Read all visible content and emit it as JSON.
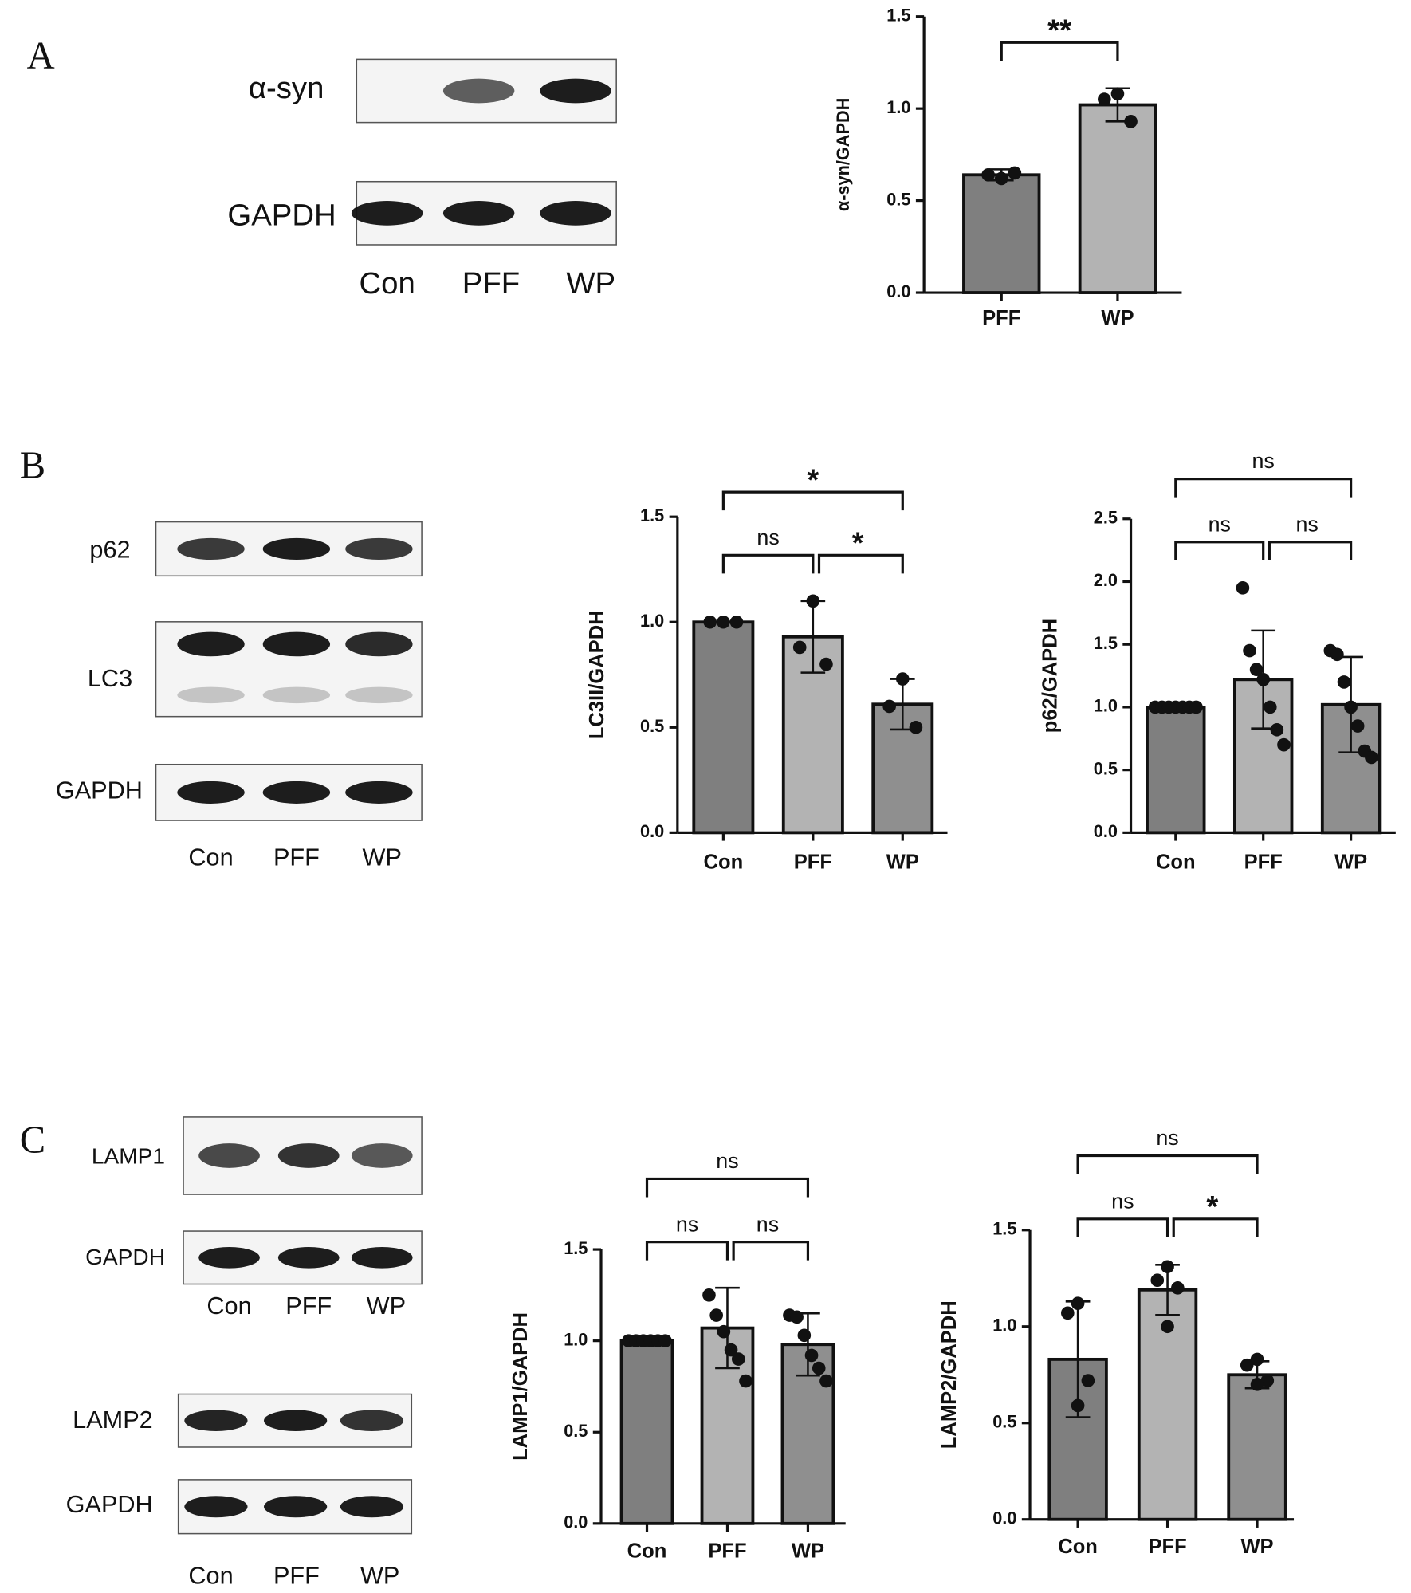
{
  "panels": [
    {
      "label": "A",
      "groups": [
        {
          "rows": [
            "α-syn",
            "GAPDH"
          ],
          "lanes": [
            "Con",
            "PFF",
            "WP"
          ]
        }
      ]
    },
    {
      "label": "B",
      "groups": [
        {
          "rows": [
            "p62",
            "LC3",
            "GAPDH"
          ],
          "lanes": [
            "Con",
            "PFF",
            "WP"
          ]
        }
      ]
    },
    {
      "label": "C",
      "groups": [
        {
          "rows": [
            "LAMP1",
            "GAPDH"
          ],
          "lanes": [
            "Con",
            "PFF",
            "WP"
          ]
        },
        {
          "rows": [
            "LAMP2",
            "GAPDH"
          ],
          "lanes": [
            "Con",
            "PFF",
            "WP"
          ]
        }
      ]
    }
  ],
  "chart_data": [
    {
      "type": "bar",
      "ylabel": "α-syn/GAPDH",
      "categories": [
        "PFF",
        "WP"
      ],
      "colors": [
        "#7f7f7f",
        "#b3b3b3"
      ],
      "values": [
        0.64,
        1.02
      ],
      "errors": [
        0.03,
        0.09
      ],
      "points": [
        [
          0.62,
          0.64,
          0.65
        ],
        [
          1.08,
          1.05,
          0.93
        ]
      ],
      "ylim": [
        0,
        1.5
      ],
      "yticks": [
        {
          "value": 0,
          "label": "0.0"
        },
        {
          "value": 0.5,
          "label": "0.5"
        },
        {
          "value": 1,
          "label": "1.0"
        },
        {
          "value": 1.5,
          "label": "1.5"
        }
      ],
      "comparisons": [
        {
          "groups": [
            "PFF",
            "WP"
          ],
          "label": "**"
        }
      ]
    },
    {
      "type": "bar",
      "ylabel": "LC3II/GAPDH",
      "categories": [
        "Con",
        "PFF",
        "WP"
      ],
      "colors": [
        "#7f7f7f",
        "#b3b3b3",
        "#8f8f8f"
      ],
      "values": [
        1.0,
        0.93,
        0.61
      ],
      "errors": [
        0,
        0.17,
        0.12
      ],
      "points": [
        [
          1,
          1,
          1
        ],
        [
          1.1,
          0.88,
          0.8
        ],
        [
          0.73,
          0.6,
          0.5
        ]
      ],
      "ylim": [
        0,
        1.5
      ],
      "yticks": [
        {
          "value": 0,
          "label": "0.0"
        },
        {
          "value": 0.5,
          "label": "0.5"
        },
        {
          "value": 1,
          "label": "1.0"
        },
        {
          "value": 1.5,
          "label": "1.5"
        }
      ],
      "comparisons": [
        {
          "groups": [
            "Con",
            "PFF"
          ],
          "label": "ns"
        },
        {
          "groups": [
            "PFF",
            "WP"
          ],
          "label": "*"
        },
        {
          "groups": [
            "Con",
            "WP"
          ],
          "label": "*"
        }
      ]
    },
    {
      "type": "bar",
      "ylabel": "p62/GAPDH",
      "categories": [
        "Con",
        "PFF",
        "WP"
      ],
      "colors": [
        "#7f7f7f",
        "#b3b3b3",
        "#8f8f8f"
      ],
      "values": [
        1.0,
        1.22,
        1.02
      ],
      "errors": [
        0,
        0.39,
        0.38
      ],
      "points": [
        [
          1,
          1,
          1,
          1,
          1,
          1,
          1
        ],
        [
          1.95,
          1.45,
          1.3,
          1.22,
          1.0,
          0.82,
          0.7
        ],
        [
          1.45,
          1.42,
          1.2,
          1.0,
          0.85,
          0.65,
          0.6
        ]
      ],
      "ylim": [
        0,
        2.5
      ],
      "yticks": [
        {
          "value": 0,
          "label": "0.0"
        },
        {
          "value": 0.5,
          "label": "0.5"
        },
        {
          "value": 1,
          "label": "1.0"
        },
        {
          "value": 1.5,
          "label": "1.5"
        },
        {
          "value": 2,
          "label": "2.0"
        },
        {
          "value": 2.5,
          "label": "2.5"
        }
      ],
      "comparisons": [
        {
          "groups": [
            "Con",
            "PFF"
          ],
          "label": "ns"
        },
        {
          "groups": [
            "PFF",
            "WP"
          ],
          "label": "ns"
        },
        {
          "groups": [
            "Con",
            "WP"
          ],
          "label": "ns"
        }
      ]
    },
    {
      "type": "bar",
      "ylabel": "LAMP1/GAPDH",
      "categories": [
        "Con",
        "PFF",
        "WP"
      ],
      "colors": [
        "#7f7f7f",
        "#b3b3b3",
        "#8f8f8f"
      ],
      "values": [
        1.0,
        1.07,
        0.98
      ],
      "errors": [
        0,
        0.22,
        0.17
      ],
      "points": [
        [
          1,
          1,
          1,
          1,
          1,
          1
        ],
        [
          1.25,
          1.14,
          1.05,
          0.95,
          0.9,
          0.78
        ],
        [
          1.14,
          1.13,
          1.03,
          0.92,
          0.85,
          0.78
        ]
      ],
      "ylim": [
        0,
        1.5
      ],
      "yticks": [
        {
          "value": 0,
          "label": "0.0"
        },
        {
          "value": 0.5,
          "label": "0.5"
        },
        {
          "value": 1,
          "label": "1.0"
        },
        {
          "value": 1.5,
          "label": "1.5"
        }
      ],
      "comparisons": [
        {
          "groups": [
            "Con",
            "PFF"
          ],
          "label": "ns"
        },
        {
          "groups": [
            "PFF",
            "WP"
          ],
          "label": "ns"
        },
        {
          "groups": [
            "Con",
            "WP"
          ],
          "label": "ns"
        }
      ]
    },
    {
      "type": "bar",
      "ylabel": "LAMP2/GAPDH",
      "categories": [
        "Con",
        "PFF",
        "WP"
      ],
      "colors": [
        "#7f7f7f",
        "#b3b3b3",
        "#8f8f8f"
      ],
      "values": [
        0.83,
        1.19,
        0.75
      ],
      "errors": [
        0.3,
        0.13,
        0.07
      ],
      "points": [
        [
          1.12,
          1.07,
          0.72,
          0.59
        ],
        [
          1.31,
          1.24,
          1.2,
          1.0
        ],
        [
          0.83,
          0.8,
          0.72,
          0.7
        ]
      ],
      "ylim": [
        0,
        1.5
      ],
      "yticks": [
        {
          "value": 0,
          "label": "0.0"
        },
        {
          "value": 0.5,
          "label": "0.5"
        },
        {
          "value": 1,
          "label": "1.0"
        },
        {
          "value": 1.5,
          "label": "1.5"
        }
      ],
      "comparisons": [
        {
          "groups": [
            "Con",
            "PFF"
          ],
          "label": "ns"
        },
        {
          "groups": [
            "PFF",
            "WP"
          ],
          "label": "*"
        },
        {
          "groups": [
            "Con",
            "WP"
          ],
          "label": "ns"
        }
      ]
    }
  ]
}
